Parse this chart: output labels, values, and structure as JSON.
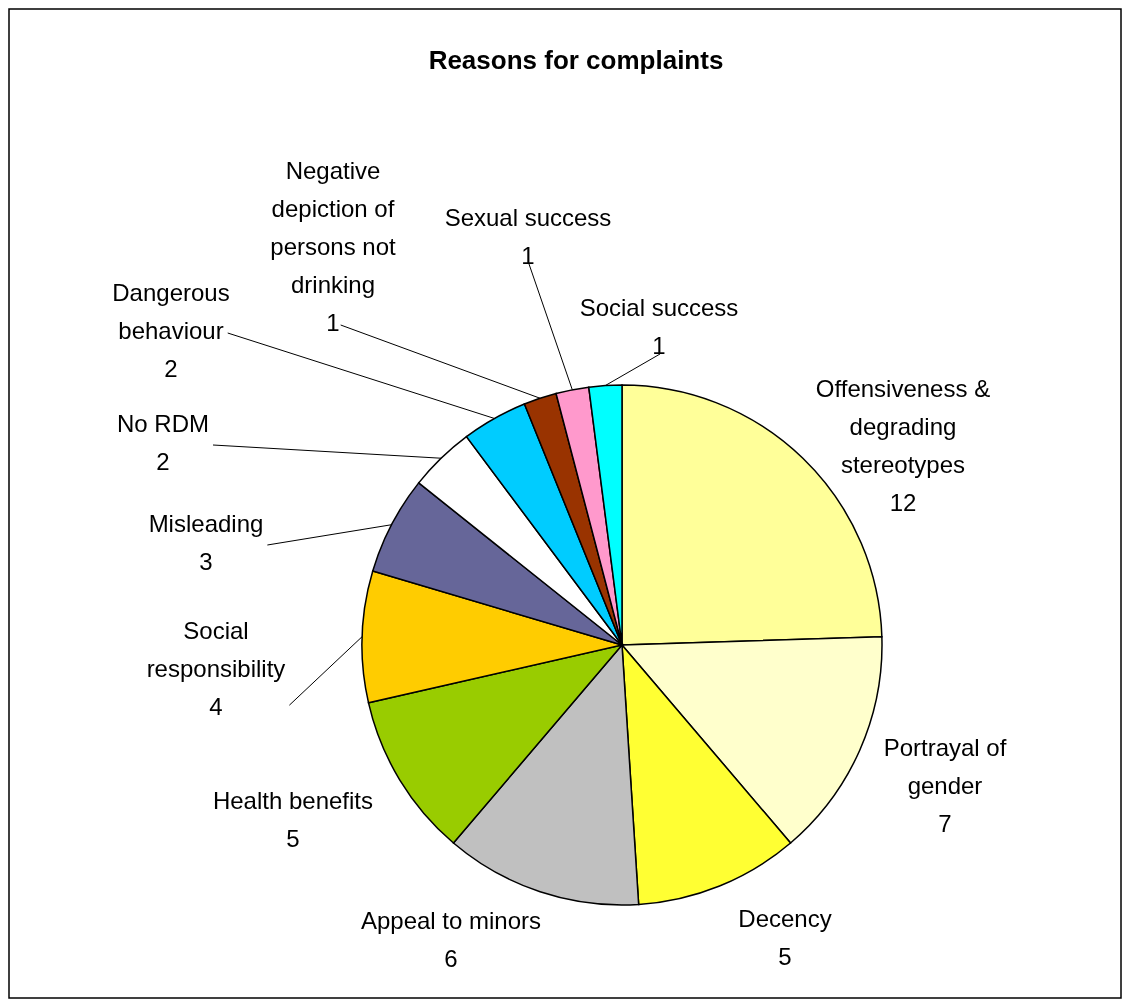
{
  "chart_data": {
    "type": "pie",
    "title": "Reasons for complaints",
    "categories": [
      "Offensiveness & degrading stereotypes",
      "Portrayal of gender",
      "Decency",
      "Appeal to minors",
      "Health benefits",
      "Social responsibility",
      "Misleading",
      "No RDM",
      "Dangerous behaviour",
      "Negative depiction of persons not drinking",
      "Sexual success",
      "Social success"
    ],
    "values": [
      12,
      7,
      5,
      6,
      5,
      4,
      3,
      2,
      2,
      1,
      1,
      1
    ],
    "colors": [
      "#ffff99",
      "#ffffcc",
      "#ffff33",
      "#c0c0c0",
      "#99cc00",
      "#ffcc00",
      "#666699",
      "#ffffff",
      "#00ccff",
      "#993300",
      "#ff99cc",
      "#00ffff"
    ],
    "data_labels": true
  }
}
